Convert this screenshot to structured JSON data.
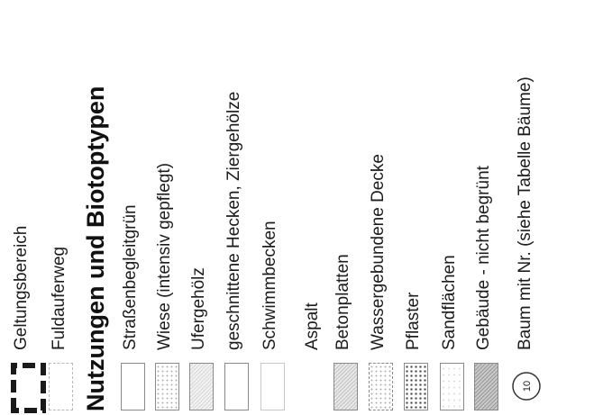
{
  "legend": {
    "top_items": [
      {
        "label": "Geltungsbereich",
        "symbol": "boundary-dashed-thick"
      },
      {
        "label": "Fuldauferweg",
        "symbol": "dashed-outline"
      }
    ],
    "heading": "Nutzungen und Biotoptypen",
    "items": [
      {
        "label": "Straßenbegleitgrün",
        "pattern": "outline"
      },
      {
        "label": "Wiese (intensiv gepflegt)",
        "pattern": "light-stipple"
      },
      {
        "label": "Ufergehölz",
        "pattern": "medium-stipple"
      },
      {
        "label": "geschnittene Hecken, Ziergehölze",
        "pattern": "outline"
      },
      {
        "label": "Schwimmbecken",
        "pattern": "outline"
      },
      {
        "label": "Aspalt",
        "pattern": "none"
      },
      {
        "label": "Betonplatten",
        "pattern": "grey-hatch"
      },
      {
        "label": "Wassergebundene Decke",
        "pattern": "sparse-dots"
      },
      {
        "label": "Pflaster",
        "pattern": "dense-dots"
      },
      {
        "label": "Sandflächen",
        "pattern": "light-dots"
      },
      {
        "label": "Gebäude - nicht begrünt",
        "pattern": "dark-hatch"
      },
      {
        "label": "Baum mit Nr. (siehe Tabelle Bäume)",
        "pattern": "tree-circle",
        "symbol_number": "10"
      }
    ]
  }
}
